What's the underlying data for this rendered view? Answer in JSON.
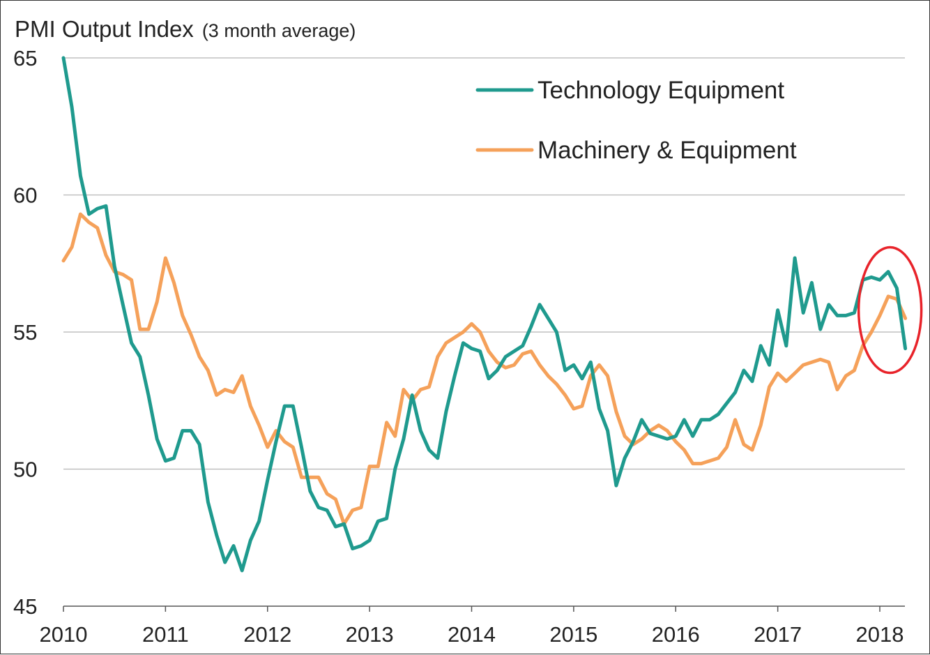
{
  "chart_data": {
    "type": "line",
    "title": "PMI Output Index",
    "subtitle": "(3 month average)",
    "xlabel": "",
    "ylabel": "",
    "xlim": [
      2010,
      2018.3
    ],
    "ylim": [
      45,
      65
    ],
    "yticks": [
      45,
      50,
      55,
      60,
      65
    ],
    "xticks": [
      "2010",
      "2011",
      "2012",
      "2013",
      "2014",
      "2015",
      "2016",
      "2017",
      "2018"
    ],
    "grid": "horizontal",
    "legend_position": "top-right",
    "annotations": [
      {
        "type": "ellipse",
        "color": "#e8232a",
        "x_center": 2018.1,
        "y_center": 55.8
      }
    ],
    "x": [
      2010.0,
      2010.083,
      2010.167,
      2010.25,
      2010.333,
      2010.417,
      2010.5,
      2010.583,
      2010.667,
      2010.75,
      2010.833,
      2010.917,
      2011.0,
      2011.083,
      2011.167,
      2011.25,
      2011.333,
      2011.417,
      2011.5,
      2011.583,
      2011.667,
      2011.75,
      2011.833,
      2011.917,
      2012.0,
      2012.083,
      2012.167,
      2012.25,
      2012.333,
      2012.417,
      2012.5,
      2012.583,
      2012.667,
      2012.75,
      2012.833,
      2012.917,
      2013.0,
      2013.083,
      2013.167,
      2013.25,
      2013.333,
      2013.417,
      2013.5,
      2013.583,
      2013.667,
      2013.75,
      2013.833,
      2013.917,
      2014.0,
      2014.083,
      2014.167,
      2014.25,
      2014.333,
      2014.417,
      2014.5,
      2014.583,
      2014.667,
      2014.75,
      2014.833,
      2014.917,
      2015.0,
      2015.083,
      2015.167,
      2015.25,
      2015.333,
      2015.417,
      2015.5,
      2015.583,
      2015.667,
      2015.75,
      2015.833,
      2015.917,
      2016.0,
      2016.083,
      2016.167,
      2016.25,
      2016.333,
      2016.417,
      2016.5,
      2016.583,
      2016.667,
      2016.75,
      2016.833,
      2016.917,
      2017.0,
      2017.083,
      2017.167,
      2017.25,
      2017.333,
      2017.417,
      2017.5,
      2017.583,
      2017.667,
      2017.75,
      2017.833,
      2017.917,
      2018.0,
      2018.083,
      2018.167,
      2018.25
    ],
    "series": [
      {
        "name": "Technology Equipment",
        "color": "#1f9a8e",
        "values": [
          65.5,
          63.2,
          60.7,
          59.3,
          59.5,
          59.6,
          57.4,
          56.0,
          54.6,
          54.1,
          52.7,
          51.1,
          50.3,
          50.4,
          51.4,
          51.4,
          50.9,
          48.8,
          47.6,
          46.6,
          47.2,
          46.3,
          47.4,
          48.1,
          49.6,
          51.0,
          52.3,
          52.3,
          50.8,
          49.2,
          48.6,
          48.5,
          47.9,
          48.0,
          47.1,
          47.2,
          47.4,
          48.1,
          48.2,
          50.0,
          51.1,
          52.7,
          51.4,
          50.7,
          50.4,
          52.1,
          53.4,
          54.6,
          54.4,
          54.3,
          53.3,
          53.6,
          54.1,
          54.3,
          54.5,
          55.2,
          56.0,
          55.5,
          55.0,
          53.6,
          53.8,
          53.3,
          53.9,
          52.2,
          51.4,
          49.4,
          50.4,
          51.0,
          51.8,
          51.3,
          51.2,
          51.1,
          51.2,
          51.8,
          51.2,
          51.8,
          51.8,
          52.0,
          52.4,
          52.8,
          53.6,
          53.2,
          54.5,
          53.8,
          55.8,
          54.5,
          57.7,
          55.7,
          56.8,
          55.1,
          56.0,
          55.6,
          55.6,
          55.7,
          56.9,
          57.0,
          56.9,
          57.2,
          56.6,
          54.4
        ]
      },
      {
        "name": "Machinery & Equipment",
        "color": "#f5a15a",
        "values": [
          57.6,
          58.1,
          59.3,
          59.0,
          58.8,
          57.8,
          57.2,
          57.1,
          56.9,
          55.1,
          55.1,
          56.1,
          57.7,
          56.8,
          55.6,
          54.9,
          54.1,
          53.6,
          52.7,
          52.9,
          52.8,
          53.4,
          52.3,
          51.6,
          50.8,
          51.4,
          51.0,
          50.8,
          49.7,
          49.7,
          49.7,
          49.1,
          48.9,
          48.0,
          48.5,
          48.6,
          50.1,
          50.1,
          51.7,
          51.2,
          52.9,
          52.5,
          52.9,
          53.0,
          54.1,
          54.6,
          54.8,
          55.0,
          55.3,
          55.0,
          54.3,
          53.9,
          53.7,
          53.8,
          54.2,
          54.3,
          53.8,
          53.4,
          53.1,
          52.7,
          52.2,
          52.3,
          53.4,
          53.8,
          53.4,
          52.1,
          51.2,
          50.9,
          51.1,
          51.4,
          51.6,
          51.4,
          51.0,
          50.7,
          50.2,
          50.2,
          50.3,
          50.4,
          50.8,
          51.8,
          50.9,
          50.7,
          51.6,
          53.0,
          53.5,
          53.2,
          53.5,
          53.8,
          53.9,
          54.0,
          53.9,
          52.9,
          53.4,
          53.6,
          54.5,
          55.0,
          55.6,
          56.3,
          56.2,
          55.5
        ]
      }
    ]
  }
}
